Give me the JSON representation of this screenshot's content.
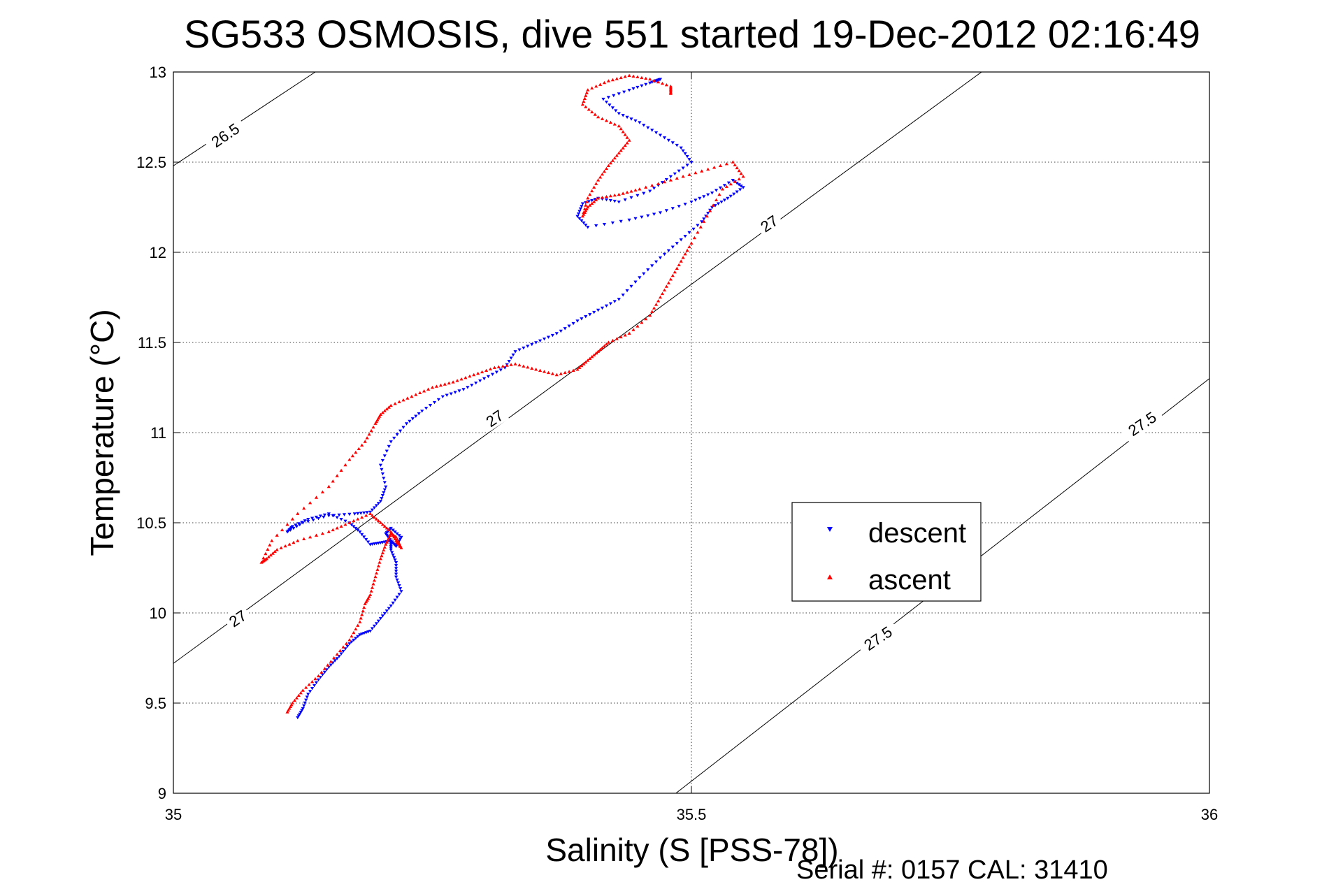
{
  "chart_data": {
    "type": "scatter",
    "title": "SG533 OSMOSIS, dive 551 started 19-Dec-2012 02:16:49",
    "xlabel": "Salinity (S [PSS-78])",
    "ylabel": "Temperature (°C)",
    "xlim": [
      35,
      36
    ],
    "ylim": [
      9,
      13
    ],
    "xticks": [
      "35",
      "35.5",
      "36"
    ],
    "yticks": [
      "9",
      "9.5",
      "10",
      "10.5",
      "11",
      "11.5",
      "12",
      "12.5",
      "13"
    ],
    "grid": true,
    "legend_position": "lower-right",
    "density_contours": [
      {
        "label": "26.5",
        "points": [
          [
            35.0,
            12.48
          ],
          [
            35.137,
            13.0
          ]
        ]
      },
      {
        "label": "27",
        "points": [
          [
            35.0,
            9.72
          ],
          [
            35.78,
            13.0
          ]
        ]
      },
      {
        "label": "27.5",
        "points": [
          [
            35.485,
            9.0
          ],
          [
            36.0,
            11.3
          ]
        ]
      }
    ],
    "contour_labels": [
      {
        "text": "26.5",
        "x": 35.05,
        "y": 12.65
      },
      {
        "text": "27",
        "x": 35.062,
        "y": 9.97
      },
      {
        "text": "27",
        "x": 35.31,
        "y": 11.08
      },
      {
        "text": "27",
        "x": 35.575,
        "y": 12.16
      },
      {
        "text": "27.5",
        "x": 35.68,
        "y": 9.86
      },
      {
        "text": "27.5",
        "x": 35.935,
        "y": 11.05
      }
    ],
    "series": [
      {
        "name": "descent",
        "color": "#0000ff",
        "marker": "triangle-down",
        "x": [
          35.12,
          35.125,
          35.13,
          35.14,
          35.15,
          35.16,
          35.17,
          35.18,
          35.19,
          35.2,
          35.21,
          35.22,
          35.215,
          35.215,
          35.21,
          35.21,
          35.205,
          35.21,
          35.22,
          35.215,
          35.21,
          35.2,
          35.19,
          35.18,
          35.17,
          35.15,
          35.13,
          35.115,
          35.11,
          35.125,
          35.15,
          35.175,
          35.19,
          35.2,
          35.205,
          35.2,
          35.21,
          35.225,
          35.24,
          35.26,
          35.28,
          35.3,
          35.32,
          35.33,
          35.35,
          35.37,
          35.39,
          35.41,
          35.43,
          35.45,
          35.47,
          35.49,
          35.51,
          35.52,
          35.535,
          35.55,
          35.54,
          35.52,
          35.5,
          35.47,
          35.44,
          35.4,
          35.39,
          35.395,
          35.41,
          35.43,
          35.46,
          35.48,
          35.5,
          35.49,
          35.47,
          35.45,
          35.43,
          35.415,
          35.44,
          35.46,
          35.47,
          35.465
        ],
        "y": [
          9.42,
          9.47,
          9.55,
          9.63,
          9.7,
          9.76,
          9.83,
          9.88,
          9.9,
          9.97,
          10.04,
          10.12,
          10.2,
          10.28,
          10.35,
          10.4,
          10.44,
          10.47,
          10.42,
          10.37,
          10.4,
          10.39,
          10.38,
          10.45,
          10.5,
          10.55,
          10.52,
          10.48,
          10.45,
          10.5,
          10.54,
          10.55,
          10.56,
          10.62,
          10.7,
          10.82,
          10.95,
          11.05,
          11.12,
          11.2,
          11.24,
          11.3,
          11.36,
          11.45,
          11.5,
          11.55,
          11.62,
          11.68,
          11.74,
          11.86,
          11.97,
          12.07,
          12.17,
          12.25,
          12.3,
          12.36,
          12.4,
          12.33,
          12.28,
          12.22,
          12.18,
          12.14,
          12.2,
          12.27,
          12.3,
          12.28,
          12.34,
          12.42,
          12.5,
          12.58,
          12.65,
          12.72,
          12.77,
          12.85,
          12.9,
          12.94,
          12.96,
          12.95
        ]
      },
      {
        "name": "ascent",
        "color": "#ff0000",
        "marker": "triangle-up",
        "x": [
          35.11,
          35.115,
          35.125,
          35.14,
          35.155,
          35.17,
          35.18,
          35.185,
          35.19,
          35.195,
          35.2,
          35.205,
          35.21,
          35.215,
          35.22,
          35.215,
          35.21,
          35.2,
          35.19,
          35.17,
          35.15,
          35.12,
          35.1,
          35.09,
          35.085,
          35.095,
          35.12,
          35.15,
          35.17,
          35.185,
          35.195,
          35.2,
          35.21,
          35.23,
          35.25,
          35.27,
          35.29,
          35.31,
          35.33,
          35.35,
          35.37,
          35.39,
          35.4,
          35.41,
          35.42,
          35.44,
          35.46,
          35.47,
          35.48,
          35.49,
          35.5,
          35.515,
          35.53,
          35.55,
          35.54,
          35.51,
          35.48,
          35.45,
          35.43,
          35.41,
          35.4,
          35.395,
          35.4,
          35.41,
          35.42,
          35.43,
          35.44,
          35.43,
          35.41,
          35.395,
          35.4,
          35.42,
          35.44,
          35.46,
          35.48,
          35.48
        ],
        "y": [
          9.45,
          9.5,
          9.57,
          9.65,
          9.75,
          9.85,
          9.95,
          10.05,
          10.1,
          10.2,
          10.3,
          10.38,
          10.44,
          10.42,
          10.36,
          10.4,
          10.45,
          10.5,
          10.55,
          10.5,
          10.45,
          10.4,
          10.35,
          10.3,
          10.28,
          10.4,
          10.55,
          10.7,
          10.85,
          10.95,
          11.05,
          11.1,
          11.15,
          11.2,
          11.25,
          11.28,
          11.32,
          11.36,
          11.38,
          11.35,
          11.32,
          11.35,
          11.4,
          11.45,
          11.5,
          11.55,
          11.65,
          11.75,
          11.85,
          11.95,
          12.05,
          12.2,
          12.35,
          12.42,
          12.5,
          12.45,
          12.4,
          12.35,
          12.32,
          12.3,
          12.25,
          12.2,
          12.3,
          12.4,
          12.48,
          12.55,
          12.62,
          12.7,
          12.75,
          12.82,
          12.9,
          12.95,
          12.98,
          12.96,
          12.92,
          12.88
        ]
      }
    ],
    "legend": {
      "entries": [
        "descent",
        "ascent"
      ]
    },
    "footer": "Serial #: 0157  CAL: 31410"
  }
}
